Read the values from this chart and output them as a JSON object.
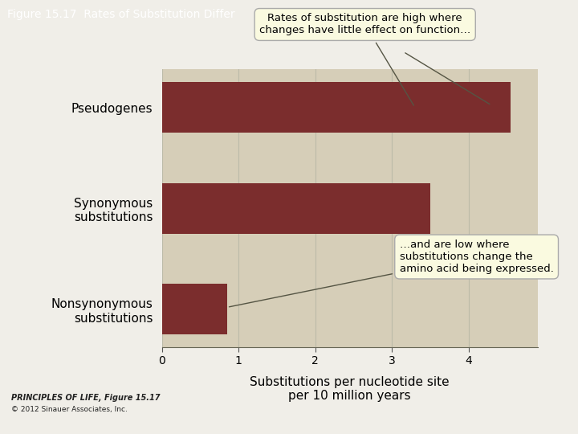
{
  "title": "Figure 15.17  Rates of Substitution Differ",
  "title_bg": "#7A4520",
  "title_color": "#ffffff",
  "categories": [
    "Nonsynonymous\nsubstitutions",
    "Synonymous\nsubstitutions",
    "Pseudogenes"
  ],
  "values": [
    0.85,
    3.5,
    4.55
  ],
  "bar_color": "#7B2D2D",
  "plot_bg": "#D6CEB8",
  "fig_bg": "#F0EEE8",
  "xlabel": "Substitutions per nucleotide site\nper 10 million years",
  "xlim": [
    0,
    4.9
  ],
  "xticks": [
    0,
    1,
    2,
    3,
    4
  ],
  "annotation1_text": "Rates of substitution are high where\nchanges have little effect on function…",
  "annotation2_text": "…and are low where\nsubstitutions change the\namino acid being expressed.",
  "footer_bold": "PRINCIPLES OF LIFE, Figure 15.17",
  "footer_normal": "© 2012 Sinauer Associates, Inc.",
  "tick_fontsize": 10,
  "label_fontsize": 11,
  "category_fontsize": 11,
  "ann_facecolor": "#FAFAE0",
  "ann_edgecolor": "#AAAAAA"
}
